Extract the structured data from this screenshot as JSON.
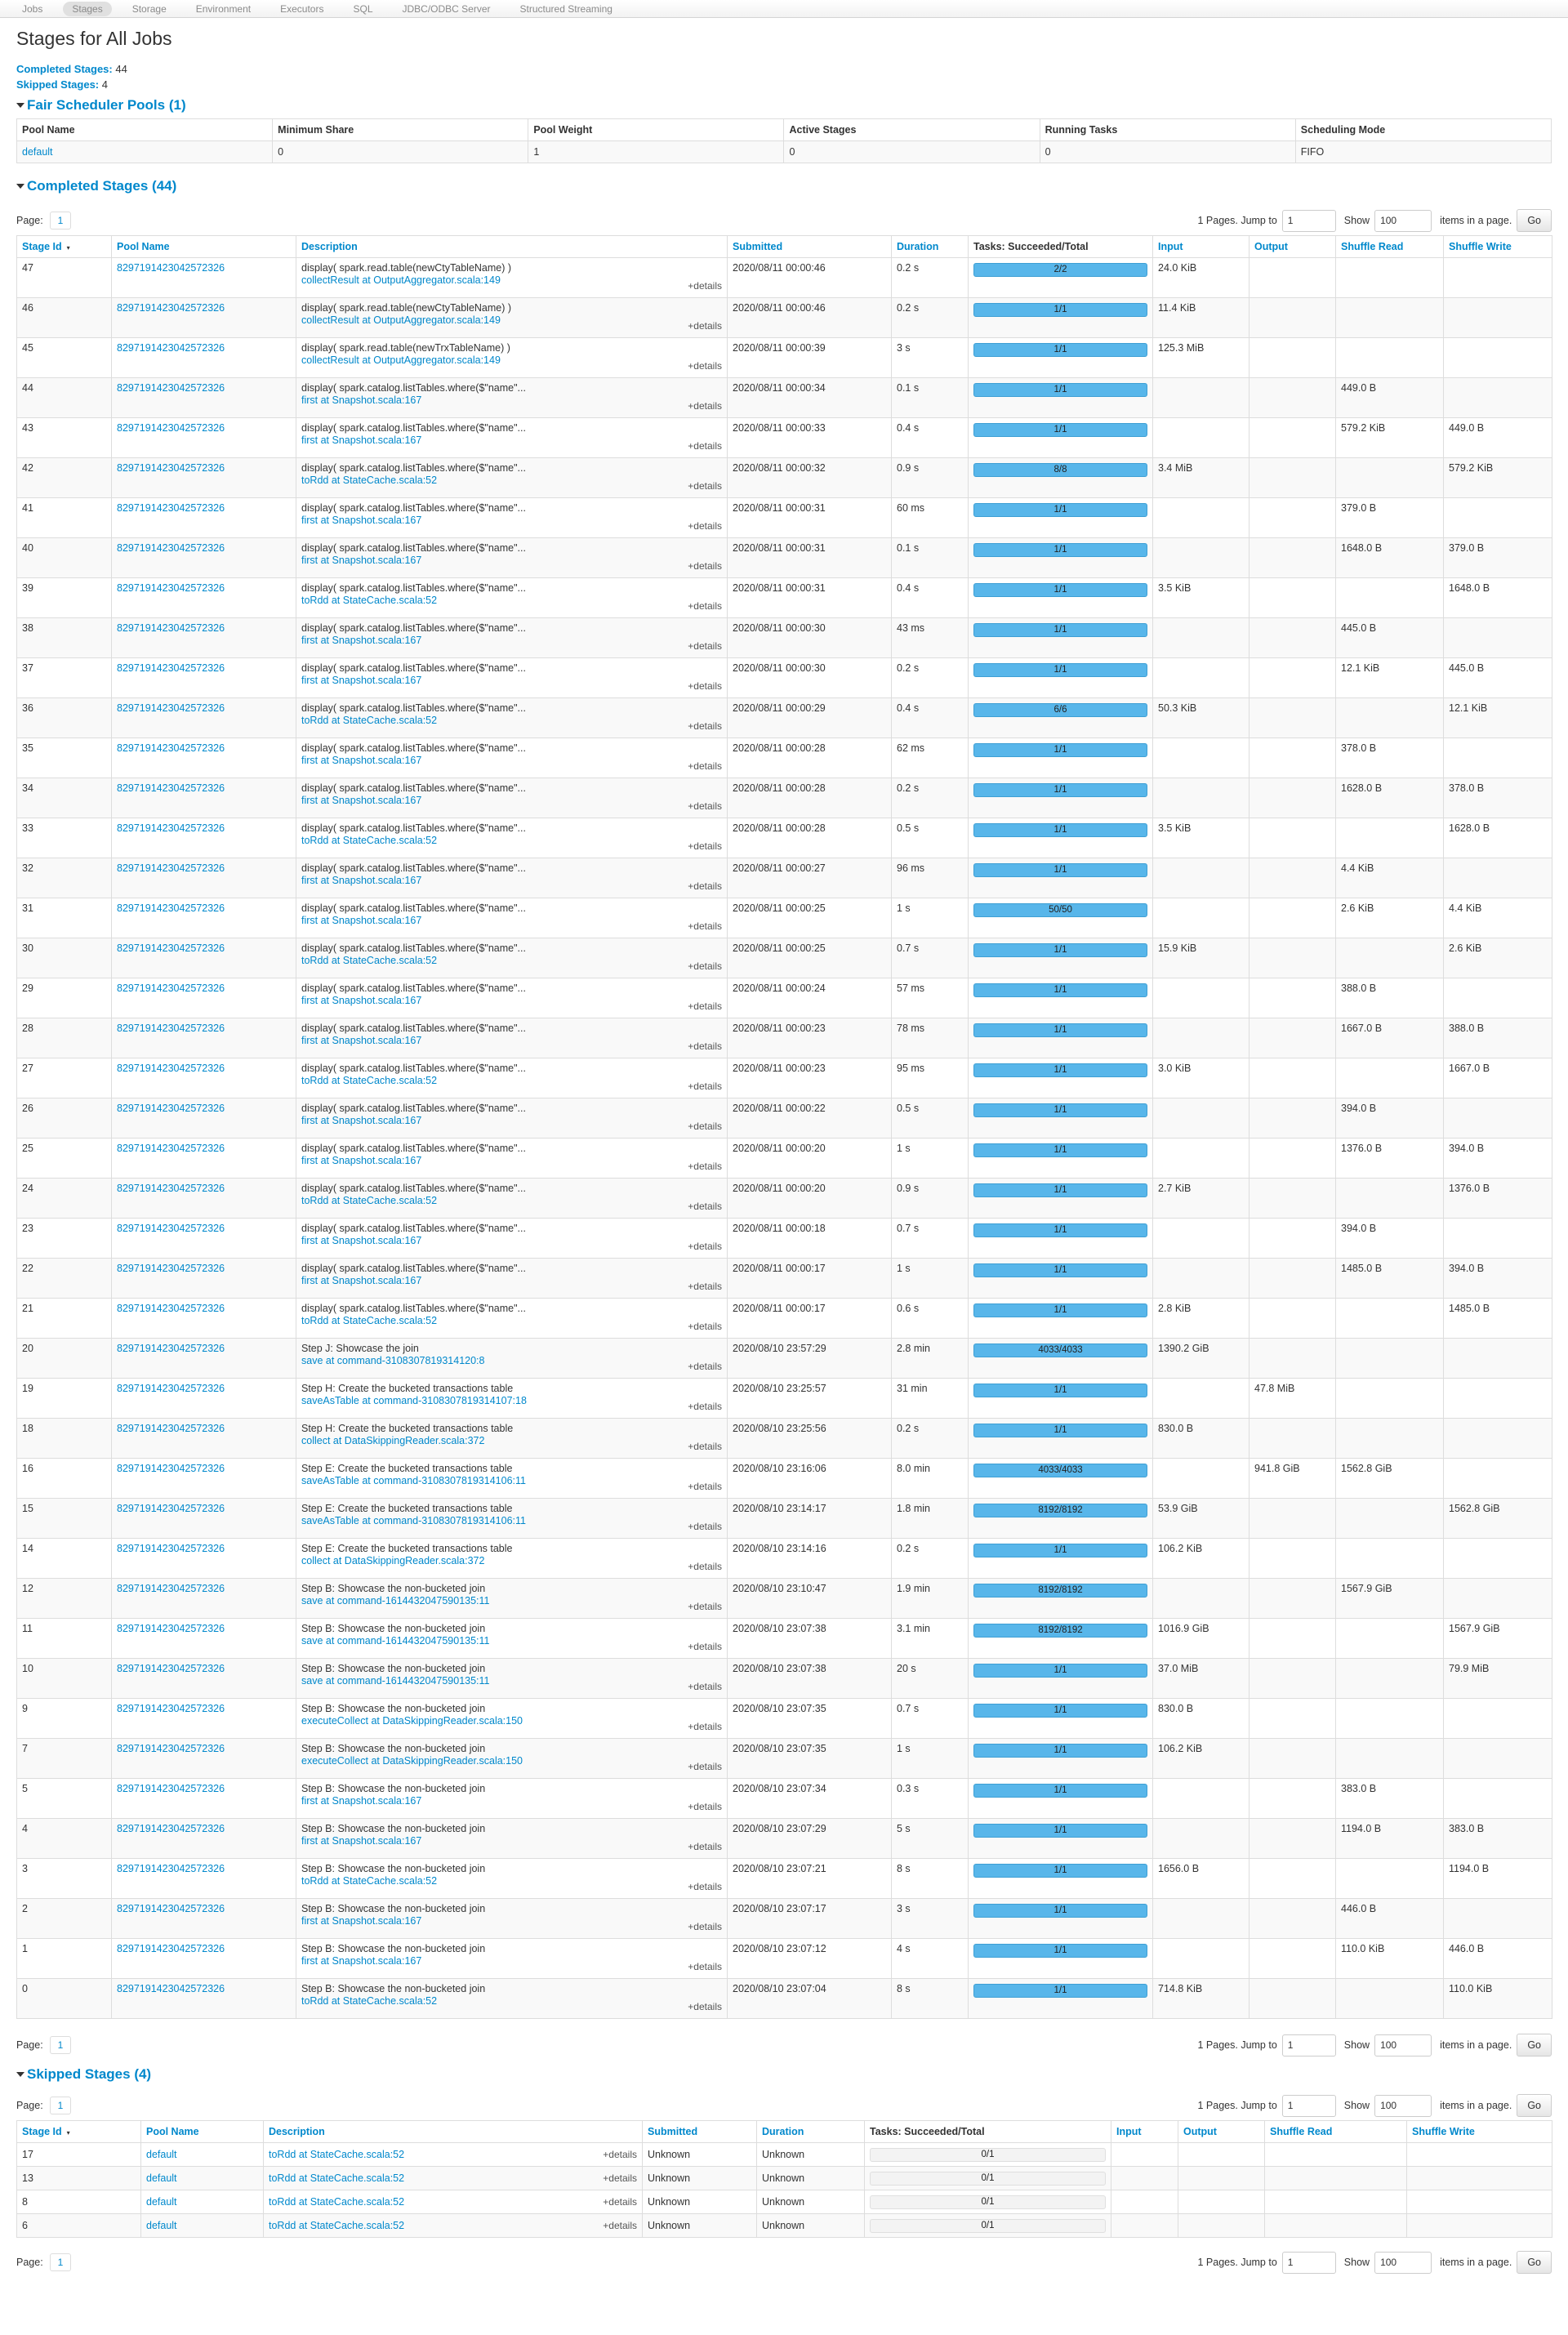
{
  "nav": {
    "items": [
      "Jobs",
      "Stages",
      "Storage",
      "Environment",
      "Executors",
      "SQL",
      "JDBC/ODBC Server",
      "Structured Streaming"
    ],
    "active": "Stages"
  },
  "title": "Stages for All Jobs",
  "summary": {
    "completed_label": "Completed Stages:",
    "completed_value": "44",
    "skipped_label": "Skipped Stages:",
    "skipped_value": "4"
  },
  "pools": {
    "heading": "Fair Scheduler Pools (1)",
    "columns": [
      "Pool Name",
      "Minimum Share",
      "Pool Weight",
      "Active Stages",
      "Running Tasks",
      "Scheduling Mode"
    ],
    "rows": [
      [
        "default",
        "0",
        "1",
        "0",
        "0",
        "FIFO"
      ]
    ]
  },
  "pager": {
    "page_label": "Page:",
    "page": "1",
    "pages_text": "1 Pages. Jump to",
    "jump_value": "1",
    "show_label": "Show",
    "show_value": "100",
    "items_label": "items in a page.",
    "go_label": "Go"
  },
  "completed": {
    "heading": "Completed Stages (44)",
    "columns": [
      "Stage Id",
      "Pool Name",
      "Description",
      "Submitted",
      "Duration",
      "Tasks: Succeeded/Total",
      "Input",
      "Output",
      "Shuffle Read",
      "Shuffle Write"
    ],
    "details_label": "+details",
    "rows": [
      {
        "id": "47",
        "pool": "8297191423042572326",
        "desc": "display( spark.read.table(newCtyTableName) )",
        "call": "collectResult at OutputAggregator.scala:149",
        "submitted": "2020/08/11 00:00:46",
        "duration": "0.2 s",
        "tasks": "2/2",
        "input": "24.0 KiB",
        "output": "",
        "sread": "",
        "swrite": ""
      },
      {
        "id": "46",
        "pool": "8297191423042572326",
        "desc": "display( spark.read.table(newCtyTableName) )",
        "call": "collectResult at OutputAggregator.scala:149",
        "submitted": "2020/08/11 00:00:46",
        "duration": "0.2 s",
        "tasks": "1/1",
        "input": "11.4 KiB",
        "output": "",
        "sread": "",
        "swrite": ""
      },
      {
        "id": "45",
        "pool": "8297191423042572326",
        "desc": "display( spark.read.table(newTrxTableName) )",
        "call": "collectResult at OutputAggregator.scala:149",
        "submitted": "2020/08/11 00:00:39",
        "duration": "3 s",
        "tasks": "1/1",
        "input": "125.3 MiB",
        "output": "",
        "sread": "",
        "swrite": ""
      },
      {
        "id": "44",
        "pool": "8297191423042572326",
        "desc": "display( spark.catalog.listTables.where($\"name\"...",
        "call": "first at Snapshot.scala:167",
        "submitted": "2020/08/11 00:00:34",
        "duration": "0.1 s",
        "tasks": "1/1",
        "input": "",
        "output": "",
        "sread": "449.0 B",
        "swrite": ""
      },
      {
        "id": "43",
        "pool": "8297191423042572326",
        "desc": "display( spark.catalog.listTables.where($\"name\"...",
        "call": "first at Snapshot.scala:167",
        "submitted": "2020/08/11 00:00:33",
        "duration": "0.4 s",
        "tasks": "1/1",
        "input": "",
        "output": "",
        "sread": "579.2 KiB",
        "swrite": "449.0 B"
      },
      {
        "id": "42",
        "pool": "8297191423042572326",
        "desc": "display( spark.catalog.listTables.where($\"name\"...",
        "call": "toRdd at StateCache.scala:52",
        "submitted": "2020/08/11 00:00:32",
        "duration": "0.9 s",
        "tasks": "8/8",
        "input": "3.4 MiB",
        "output": "",
        "sread": "",
        "swrite": "579.2 KiB"
      },
      {
        "id": "41",
        "pool": "8297191423042572326",
        "desc": "display( spark.catalog.listTables.where($\"name\"...",
        "call": "first at Snapshot.scala:167",
        "submitted": "2020/08/11 00:00:31",
        "duration": "60 ms",
        "tasks": "1/1",
        "input": "",
        "output": "",
        "sread": "379.0 B",
        "swrite": ""
      },
      {
        "id": "40",
        "pool": "8297191423042572326",
        "desc": "display( spark.catalog.listTables.where($\"name\"...",
        "call": "first at Snapshot.scala:167",
        "submitted": "2020/08/11 00:00:31",
        "duration": "0.1 s",
        "tasks": "1/1",
        "input": "",
        "output": "",
        "sread": "1648.0 B",
        "swrite": "379.0 B"
      },
      {
        "id": "39",
        "pool": "8297191423042572326",
        "desc": "display( spark.catalog.listTables.where($\"name\"...",
        "call": "toRdd at StateCache.scala:52",
        "submitted": "2020/08/11 00:00:31",
        "duration": "0.4 s",
        "tasks": "1/1",
        "input": "3.5 KiB",
        "output": "",
        "sread": "",
        "swrite": "1648.0 B"
      },
      {
        "id": "38",
        "pool": "8297191423042572326",
        "desc": "display( spark.catalog.listTables.where($\"name\"...",
        "call": "first at Snapshot.scala:167",
        "submitted": "2020/08/11 00:00:30",
        "duration": "43 ms",
        "tasks": "1/1",
        "input": "",
        "output": "",
        "sread": "445.0 B",
        "swrite": ""
      },
      {
        "id": "37",
        "pool": "8297191423042572326",
        "desc": "display( spark.catalog.listTables.where($\"name\"...",
        "call": "first at Snapshot.scala:167",
        "submitted": "2020/08/11 00:00:30",
        "duration": "0.2 s",
        "tasks": "1/1",
        "input": "",
        "output": "",
        "sread": "12.1 KiB",
        "swrite": "445.0 B"
      },
      {
        "id": "36",
        "pool": "8297191423042572326",
        "desc": "display( spark.catalog.listTables.where($\"name\"...",
        "call": "toRdd at StateCache.scala:52",
        "submitted": "2020/08/11 00:00:29",
        "duration": "0.4 s",
        "tasks": "6/6",
        "input": "50.3 KiB",
        "output": "",
        "sread": "",
        "swrite": "12.1 KiB"
      },
      {
        "id": "35",
        "pool": "8297191423042572326",
        "desc": "display( spark.catalog.listTables.where($\"name\"...",
        "call": "first at Snapshot.scala:167",
        "submitted": "2020/08/11 00:00:28",
        "duration": "62 ms",
        "tasks": "1/1",
        "input": "",
        "output": "",
        "sread": "378.0 B",
        "swrite": ""
      },
      {
        "id": "34",
        "pool": "8297191423042572326",
        "desc": "display( spark.catalog.listTables.where($\"name\"...",
        "call": "first at Snapshot.scala:167",
        "submitted": "2020/08/11 00:00:28",
        "duration": "0.2 s",
        "tasks": "1/1",
        "input": "",
        "output": "",
        "sread": "1628.0 B",
        "swrite": "378.0 B"
      },
      {
        "id": "33",
        "pool": "8297191423042572326",
        "desc": "display( spark.catalog.listTables.where($\"name\"...",
        "call": "toRdd at StateCache.scala:52",
        "submitted": "2020/08/11 00:00:28",
        "duration": "0.5 s",
        "tasks": "1/1",
        "input": "3.5 KiB",
        "output": "",
        "sread": "",
        "swrite": "1628.0 B"
      },
      {
        "id": "32",
        "pool": "8297191423042572326",
        "desc": "display( spark.catalog.listTables.where($\"name\"...",
        "call": "first at Snapshot.scala:167",
        "submitted": "2020/08/11 00:00:27",
        "duration": "96 ms",
        "tasks": "1/1",
        "input": "",
        "output": "",
        "sread": "4.4 KiB",
        "swrite": ""
      },
      {
        "id": "31",
        "pool": "8297191423042572326",
        "desc": "display( spark.catalog.listTables.where($\"name\"...",
        "call": "first at Snapshot.scala:167",
        "submitted": "2020/08/11 00:00:25",
        "duration": "1 s",
        "tasks": "50/50",
        "input": "",
        "output": "",
        "sread": "2.6 KiB",
        "swrite": "4.4 KiB"
      },
      {
        "id": "30",
        "pool": "8297191423042572326",
        "desc": "display( spark.catalog.listTables.where($\"name\"...",
        "call": "toRdd at StateCache.scala:52",
        "submitted": "2020/08/11 00:00:25",
        "duration": "0.7 s",
        "tasks": "1/1",
        "input": "15.9 KiB",
        "output": "",
        "sread": "",
        "swrite": "2.6 KiB"
      },
      {
        "id": "29",
        "pool": "8297191423042572326",
        "desc": "display( spark.catalog.listTables.where($\"name\"...",
        "call": "first at Snapshot.scala:167",
        "submitted": "2020/08/11 00:00:24",
        "duration": "57 ms",
        "tasks": "1/1",
        "input": "",
        "output": "",
        "sread": "388.0 B",
        "swrite": ""
      },
      {
        "id": "28",
        "pool": "8297191423042572326",
        "desc": "display( spark.catalog.listTables.where($\"name\"...",
        "call": "first at Snapshot.scala:167",
        "submitted": "2020/08/11 00:00:23",
        "duration": "78 ms",
        "tasks": "1/1",
        "input": "",
        "output": "",
        "sread": "1667.0 B",
        "swrite": "388.0 B"
      },
      {
        "id": "27",
        "pool": "8297191423042572326",
        "desc": "display( spark.catalog.listTables.where($\"name\"...",
        "call": "toRdd at StateCache.scala:52",
        "submitted": "2020/08/11 00:00:23",
        "duration": "95 ms",
        "tasks": "1/1",
        "input": "3.0 KiB",
        "output": "",
        "sread": "",
        "swrite": "1667.0 B"
      },
      {
        "id": "26",
        "pool": "8297191423042572326",
        "desc": "display( spark.catalog.listTables.where($\"name\"...",
        "call": "first at Snapshot.scala:167",
        "submitted": "2020/08/11 00:00:22",
        "duration": "0.5 s",
        "tasks": "1/1",
        "input": "",
        "output": "",
        "sread": "394.0 B",
        "swrite": ""
      },
      {
        "id": "25",
        "pool": "8297191423042572326",
        "desc": "display( spark.catalog.listTables.where($\"name\"...",
        "call": "first at Snapshot.scala:167",
        "submitted": "2020/08/11 00:00:20",
        "duration": "1 s",
        "tasks": "1/1",
        "input": "",
        "output": "",
        "sread": "1376.0 B",
        "swrite": "394.0 B"
      },
      {
        "id": "24",
        "pool": "8297191423042572326",
        "desc": "display( spark.catalog.listTables.where($\"name\"...",
        "call": "toRdd at StateCache.scala:52",
        "submitted": "2020/08/11 00:00:20",
        "duration": "0.9 s",
        "tasks": "1/1",
        "input": "2.7 KiB",
        "output": "",
        "sread": "",
        "swrite": "1376.0 B"
      },
      {
        "id": "23",
        "pool": "8297191423042572326",
        "desc": "display( spark.catalog.listTables.where($\"name\"...",
        "call": "first at Snapshot.scala:167",
        "submitted": "2020/08/11 00:00:18",
        "duration": "0.7 s",
        "tasks": "1/1",
        "input": "",
        "output": "",
        "sread": "394.0 B",
        "swrite": ""
      },
      {
        "id": "22",
        "pool": "8297191423042572326",
        "desc": "display( spark.catalog.listTables.where($\"name\"...",
        "call": "first at Snapshot.scala:167",
        "submitted": "2020/08/11 00:00:17",
        "duration": "1 s",
        "tasks": "1/1",
        "input": "",
        "output": "",
        "sread": "1485.0 B",
        "swrite": "394.0 B"
      },
      {
        "id": "21",
        "pool": "8297191423042572326",
        "desc": "display( spark.catalog.listTables.where($\"name\"...",
        "call": "toRdd at StateCache.scala:52",
        "submitted": "2020/08/11 00:00:17",
        "duration": "0.6 s",
        "tasks": "1/1",
        "input": "2.8 KiB",
        "output": "",
        "sread": "",
        "swrite": "1485.0 B"
      },
      {
        "id": "20",
        "pool": "8297191423042572326",
        "desc": "Step J: Showcase the join",
        "call": "save at command-3108307819314120:8",
        "submitted": "2020/08/10 23:57:29",
        "duration": "2.8 min",
        "tasks": "4033/4033",
        "input": "1390.2 GiB",
        "output": "",
        "sread": "",
        "swrite": ""
      },
      {
        "id": "19",
        "pool": "8297191423042572326",
        "desc": "Step H: Create the bucketed transactions table",
        "call": "saveAsTable at command-3108307819314107:18",
        "submitted": "2020/08/10 23:25:57",
        "duration": "31 min",
        "tasks": "1/1",
        "input": "",
        "output": "47.8 MiB",
        "sread": "",
        "swrite": ""
      },
      {
        "id": "18",
        "pool": "8297191423042572326",
        "desc": "Step H: Create the bucketed transactions table",
        "call": "collect at DataSkippingReader.scala:372",
        "submitted": "2020/08/10 23:25:56",
        "duration": "0.2 s",
        "tasks": "1/1",
        "input": "830.0 B",
        "output": "",
        "sread": "",
        "swrite": ""
      },
      {
        "id": "16",
        "pool": "8297191423042572326",
        "desc": "Step E: Create the bucketed transactions table",
        "call": "saveAsTable at command-3108307819314106:11",
        "submitted": "2020/08/10 23:16:06",
        "duration": "8.0 min",
        "tasks": "4033/4033",
        "input": "",
        "output": "941.8 GiB",
        "sread": "1562.8 GiB",
        "swrite": ""
      },
      {
        "id": "15",
        "pool": "8297191423042572326",
        "desc": "Step E: Create the bucketed transactions table",
        "call": "saveAsTable at command-3108307819314106:11",
        "submitted": "2020/08/10 23:14:17",
        "duration": "1.8 min",
        "tasks": "8192/8192",
        "input": "53.9 GiB",
        "output": "",
        "sread": "",
        "swrite": "1562.8 GiB"
      },
      {
        "id": "14",
        "pool": "8297191423042572326",
        "desc": "Step E: Create the bucketed transactions table",
        "call": "collect at DataSkippingReader.scala:372",
        "submitted": "2020/08/10 23:14:16",
        "duration": "0.2 s",
        "tasks": "1/1",
        "input": "106.2 KiB",
        "output": "",
        "sread": "",
        "swrite": ""
      },
      {
        "id": "12",
        "pool": "8297191423042572326",
        "desc": "Step B: Showcase the non-bucketed join",
        "call": "save at command-1614432047590135:11",
        "submitted": "2020/08/10 23:10:47",
        "duration": "1.9 min",
        "tasks": "8192/8192",
        "input": "",
        "output": "",
        "sread": "1567.9 GiB",
        "swrite": ""
      },
      {
        "id": "11",
        "pool": "8297191423042572326",
        "desc": "Step B: Showcase the non-bucketed join",
        "call": "save at command-1614432047590135:11",
        "submitted": "2020/08/10 23:07:38",
        "duration": "3.1 min",
        "tasks": "8192/8192",
        "input": "1016.9 GiB",
        "output": "",
        "sread": "",
        "swrite": "1567.9 GiB"
      },
      {
        "id": "10",
        "pool": "8297191423042572326",
        "desc": "Step B: Showcase the non-bucketed join",
        "call": "save at command-1614432047590135:11",
        "submitted": "2020/08/10 23:07:38",
        "duration": "20 s",
        "tasks": "1/1",
        "input": "37.0 MiB",
        "output": "",
        "sread": "",
        "swrite": "79.9 MiB"
      },
      {
        "id": "9",
        "pool": "8297191423042572326",
        "desc": "Step B: Showcase the non-bucketed join",
        "call": "executeCollect at DataSkippingReader.scala:150",
        "submitted": "2020/08/10 23:07:35",
        "duration": "0.7 s",
        "tasks": "1/1",
        "input": "830.0 B",
        "output": "",
        "sread": "",
        "swrite": ""
      },
      {
        "id": "7",
        "pool": "8297191423042572326",
        "desc": "Step B: Showcase the non-bucketed join",
        "call": "executeCollect at DataSkippingReader.scala:150",
        "submitted": "2020/08/10 23:07:35",
        "duration": "1 s",
        "tasks": "1/1",
        "input": "106.2 KiB",
        "output": "",
        "sread": "",
        "swrite": ""
      },
      {
        "id": "5",
        "pool": "8297191423042572326",
        "desc": "Step B: Showcase the non-bucketed join",
        "call": "first at Snapshot.scala:167",
        "submitted": "2020/08/10 23:07:34",
        "duration": "0.3 s",
        "tasks": "1/1",
        "input": "",
        "output": "",
        "sread": "383.0 B",
        "swrite": ""
      },
      {
        "id": "4",
        "pool": "8297191423042572326",
        "desc": "Step B: Showcase the non-bucketed join",
        "call": "first at Snapshot.scala:167",
        "submitted": "2020/08/10 23:07:29",
        "duration": "5 s",
        "tasks": "1/1",
        "input": "",
        "output": "",
        "sread": "1194.0 B",
        "swrite": "383.0 B"
      },
      {
        "id": "3",
        "pool": "8297191423042572326",
        "desc": "Step B: Showcase the non-bucketed join",
        "call": "toRdd at StateCache.scala:52",
        "submitted": "2020/08/10 23:07:21",
        "duration": "8 s",
        "tasks": "1/1",
        "input": "1656.0 B",
        "output": "",
        "sread": "",
        "swrite": "1194.0 B"
      },
      {
        "id": "2",
        "pool": "8297191423042572326",
        "desc": "Step B: Showcase the non-bucketed join",
        "call": "first at Snapshot.scala:167",
        "submitted": "2020/08/10 23:07:17",
        "duration": "3 s",
        "tasks": "1/1",
        "input": "",
        "output": "",
        "sread": "446.0 B",
        "swrite": ""
      },
      {
        "id": "1",
        "pool": "8297191423042572326",
        "desc": "Step B: Showcase the non-bucketed join",
        "call": "first at Snapshot.scala:167",
        "submitted": "2020/08/10 23:07:12",
        "duration": "4 s",
        "tasks": "1/1",
        "input": "",
        "output": "",
        "sread": "110.0 KiB",
        "swrite": "446.0 B"
      },
      {
        "id": "0",
        "pool": "8297191423042572326",
        "desc": "Step B: Showcase the non-bucketed join",
        "call": "toRdd at StateCache.scala:52",
        "submitted": "2020/08/10 23:07:04",
        "duration": "8 s",
        "tasks": "1/1",
        "input": "714.8 KiB",
        "output": "",
        "sread": "",
        "swrite": "110.0 KiB"
      }
    ]
  },
  "skipped": {
    "heading": "Skipped Stages (4)",
    "columns": [
      "Stage Id",
      "Pool Name",
      "Description",
      "Submitted",
      "Duration",
      "Tasks: Succeeded/Total",
      "Input",
      "Output",
      "Shuffle Read",
      "Shuffle Write"
    ],
    "details_label": "+details",
    "rows": [
      {
        "id": "17",
        "pool": "default",
        "call": "toRdd at StateCache.scala:52",
        "submitted": "Unknown",
        "duration": "Unknown",
        "tasks": "0/1"
      },
      {
        "id": "13",
        "pool": "default",
        "call": "toRdd at StateCache.scala:52",
        "submitted": "Unknown",
        "duration": "Unknown",
        "tasks": "0/1"
      },
      {
        "id": "8",
        "pool": "default",
        "call": "toRdd at StateCache.scala:52",
        "submitted": "Unknown",
        "duration": "Unknown",
        "tasks": "0/1"
      },
      {
        "id": "6",
        "pool": "default",
        "call": "toRdd at StateCache.scala:52",
        "submitted": "Unknown",
        "duration": "Unknown",
        "tasks": "0/1"
      }
    ]
  }
}
